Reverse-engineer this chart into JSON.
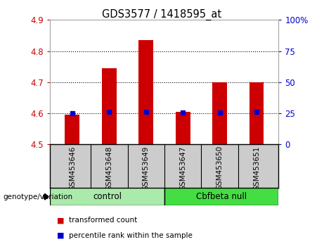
{
  "title": "GDS3577 / 1418595_at",
  "samples": [
    "GSM453646",
    "GSM453648",
    "GSM453649",
    "GSM453647",
    "GSM453650",
    "GSM453651"
  ],
  "bar_values": [
    4.595,
    4.745,
    4.835,
    4.605,
    4.7,
    4.7
  ],
  "percentile_values": [
    4.6,
    4.605,
    4.605,
    4.603,
    4.602,
    4.604
  ],
  "bar_bottom": 4.5,
  "ylim_left": [
    4.5,
    4.9
  ],
  "ylim_right": [
    0,
    100
  ],
  "left_yticks": [
    4.5,
    4.6,
    4.7,
    4.8,
    4.9
  ],
  "right_yticks": [
    0,
    25,
    50,
    75,
    100
  ],
  "right_yticklabels": [
    "0",
    "25",
    "50",
    "75",
    "100%"
  ],
  "bar_color": "#cc0000",
  "percentile_color": "#0000cc",
  "groups": [
    {
      "label": "control",
      "color": "#aaeaaa"
    },
    {
      "label": "Cbfbeta null",
      "color": "#44dd44"
    }
  ],
  "group_row_label": "genotype/variation",
  "legend_bar_label": "transformed count",
  "legend_pct_label": "percentile rank within the sample",
  "background_color": "#ffffff",
  "plot_bg_color": "#ffffff",
  "grid_color": "#000000",
  "tick_label_color_left": "#cc0000",
  "tick_label_color_right": "#0000cc",
  "sample_box_color": "#cccccc",
  "bar_width": 0.4
}
